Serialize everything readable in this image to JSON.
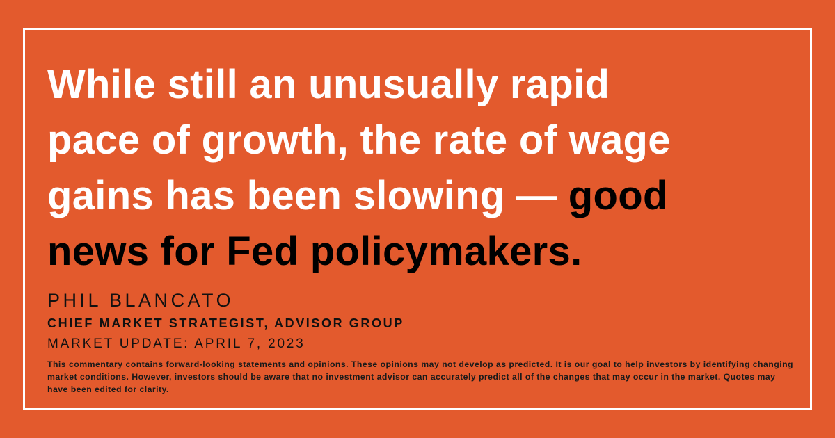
{
  "quote": {
    "lines": [
      [
        {
          "text": "While still an unusually rapid",
          "color": "#ffffff"
        }
      ],
      [
        {
          "text": "pace of growth, the rate of wage",
          "color": "#ffffff"
        }
      ],
      [
        {
          "text": "gains has been slowing —",
          "color": "#ffffff"
        },
        {
          "text": " good",
          "color": "#000000"
        }
      ],
      [
        {
          "text": "news for Fed policymakers.",
          "color": "#000000"
        }
      ]
    ]
  },
  "author": {
    "name": "PHIL BLANCATO",
    "title": "CHIEF MARKET STRATEGIST, ADVISOR GROUP"
  },
  "date": "MARKET UPDATE: APRIL 7, 2023",
  "disclaimer": "This commentary contains forward-looking statements and opinions. These opinions may not develop as predicted. It is our goal to help investors by identifying changing market conditions. However, investors should be aware that no investment advisor can accurately predict all of the changes that may occur in the market. Quotes may have been edited for clarity."
}
